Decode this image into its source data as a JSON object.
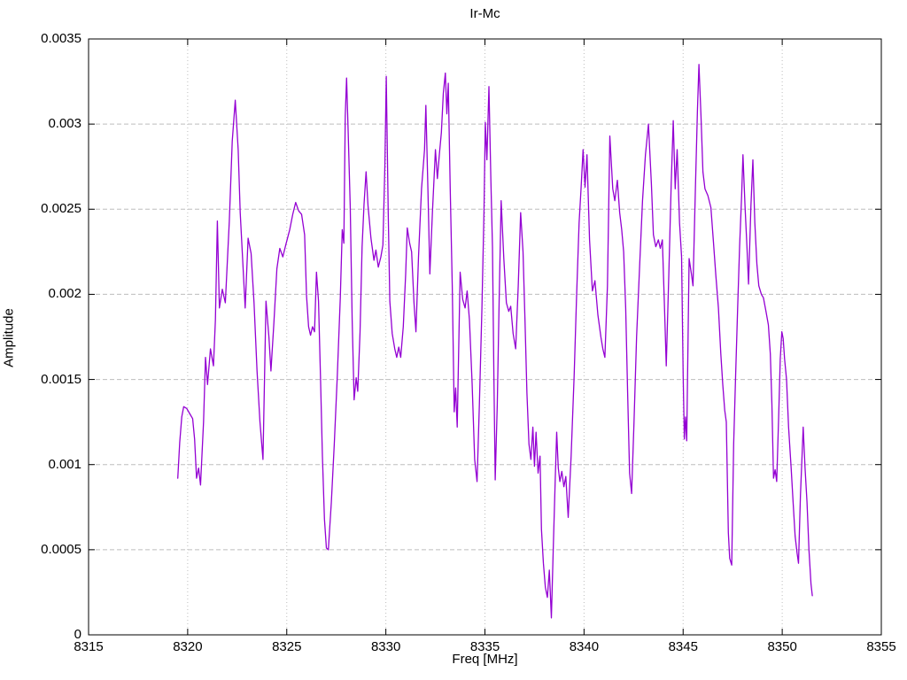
{
  "title": "Ir-Mc",
  "axes": {
    "xlabel": "Freq [MHz]",
    "ylabel": "Amplitude"
  },
  "colors": {
    "line": "#9400d3",
    "grid": "#bdbdbd",
    "axis": "#000000",
    "background": "#ffffff",
    "text": "#000000"
  },
  "chart_data": {
    "type": "line",
    "title": "Ir-Mc",
    "xlabel": "Freq [MHz]",
    "ylabel": "Amplitude",
    "xlim": [
      8315,
      8355
    ],
    "ylim": [
      0,
      0.0035
    ],
    "xticks": [
      8315,
      8320,
      8325,
      8330,
      8335,
      8340,
      8345,
      8350,
      8355
    ],
    "xtick_labels": [
      "8315",
      "8320",
      "8325",
      "8330",
      "8335",
      "8340",
      "8345",
      "8350",
      "8355"
    ],
    "yticks": [
      0,
      0.0005,
      0.001,
      0.0015,
      0.002,
      0.0025,
      0.003,
      0.0035
    ],
    "ytick_labels": [
      "0",
      "0.0005",
      "0.001",
      "0.0015",
      "0.002",
      "0.0025",
      "0.003",
      "0.0035"
    ],
    "grid": true,
    "legend_position": "none",
    "line_color": "#9400d3",
    "series": [
      {
        "name": "Ir-Mc",
        "x": [
          8319.5,
          8319.6,
          8319.7,
          8319.8,
          8319.95,
          8320.1,
          8320.25,
          8320.35,
          8320.45,
          8320.55,
          8320.65,
          8320.8,
          8320.9,
          8321.0,
          8321.15,
          8321.3,
          8321.4,
          8321.5,
          8321.6,
          8321.75,
          8321.9,
          8322.1,
          8322.25,
          8322.4,
          8322.55,
          8322.65,
          8322.8,
          8322.9,
          8323.05,
          8323.2,
          8323.35,
          8323.5,
          8323.65,
          8323.8,
          8323.95,
          8324.1,
          8324.2,
          8324.35,
          8324.5,
          8324.65,
          8324.8,
          8324.95,
          8325.15,
          8325.3,
          8325.45,
          8325.6,
          8325.75,
          8325.9,
          8326.0,
          8326.1,
          8326.2,
          8326.3,
          8326.4,
          8326.5,
          8326.6,
          8326.7,
          8326.8,
          8326.9,
          8327.0,
          8327.1,
          8327.25,
          8327.4,
          8327.55,
          8327.7,
          8327.8,
          8327.88,
          8327.95,
          8328.02,
          8328.1,
          8328.2,
          8328.3,
          8328.4,
          8328.5,
          8328.58,
          8328.7,
          8328.8,
          8328.9,
          8329.0,
          8329.1,
          8329.25,
          8329.4,
          8329.5,
          8329.62,
          8329.75,
          8329.85,
          8329.95,
          8330.02,
          8330.12,
          8330.2,
          8330.32,
          8330.45,
          8330.55,
          8330.65,
          8330.75,
          8330.88,
          8331.0,
          8331.08,
          8331.2,
          8331.3,
          8331.42,
          8331.52,
          8331.65,
          8331.8,
          8331.95,
          8332.02,
          8332.12,
          8332.22,
          8332.35,
          8332.5,
          8332.6,
          8332.7,
          8332.8,
          8332.9,
          8333.0,
          8333.08,
          8333.15,
          8333.25,
          8333.35,
          8333.45,
          8333.52,
          8333.6,
          8333.75,
          8333.88,
          8334.0,
          8334.1,
          8334.22,
          8334.35,
          8334.48,
          8334.6,
          8334.72,
          8334.85,
          8334.95,
          8335.02,
          8335.1,
          8335.2,
          8335.3,
          8335.38,
          8335.45,
          8335.52,
          8335.62,
          8335.72,
          8335.82,
          8335.95,
          8336.08,
          8336.2,
          8336.3,
          8336.42,
          8336.55,
          8336.68,
          8336.8,
          8336.92,
          8337.02,
          8337.12,
          8337.22,
          8337.32,
          8337.42,
          8337.5,
          8337.58,
          8337.68,
          8337.78,
          8337.85,
          8337.95,
          8338.05,
          8338.15,
          8338.25,
          8338.35,
          8338.45,
          8338.55,
          8338.62,
          8338.7,
          8338.78,
          8338.88,
          8338.98,
          8339.08,
          8339.2,
          8339.35,
          8339.5,
          8339.62,
          8339.75,
          8339.85,
          8339.95,
          8340.05,
          8340.15,
          8340.28,
          8340.42,
          8340.55,
          8340.7,
          8340.85,
          8340.95,
          8341.05,
          8341.18,
          8341.3,
          8341.45,
          8341.55,
          8341.68,
          8341.8,
          8341.9,
          8342.0,
          8342.1,
          8342.2,
          8342.3,
          8342.4,
          8342.52,
          8342.65,
          8342.8,
          8342.95,
          8343.1,
          8343.25,
          8343.4,
          8343.5,
          8343.62,
          8343.75,
          8343.85,
          8343.95,
          8344.05,
          8344.15,
          8344.28,
          8344.4,
          8344.5,
          8344.6,
          8344.7,
          8344.82,
          8344.92,
          8345.0,
          8345.06,
          8345.12,
          8345.18,
          8345.3,
          8345.42,
          8345.5,
          8345.62,
          8345.72,
          8345.8,
          8345.9,
          8346.0,
          8346.1,
          8346.25,
          8346.4,
          8346.52,
          8346.65,
          8346.78,
          8346.9,
          8347.0,
          8347.1,
          8347.18,
          8347.28,
          8347.35,
          8347.45,
          8347.55,
          8347.65,
          8347.75,
          8347.85,
          8347.95,
          8348.02,
          8348.12,
          8348.22,
          8348.3,
          8348.42,
          8348.52,
          8348.62,
          8348.72,
          8348.82,
          8348.95,
          8349.05,
          8349.18,
          8349.3,
          8349.4,
          8349.48,
          8349.56,
          8349.64,
          8349.72,
          8349.82,
          8349.9,
          8349.98,
          8350.05,
          8350.12,
          8350.22,
          8350.32,
          8350.45,
          8350.55,
          8350.65,
          8350.75,
          8350.82,
          8350.92,
          8351.0,
          8351.06,
          8351.15,
          8351.25,
          8351.35,
          8351.45,
          8351.52
        ],
        "y": [
          0.00092,
          0.00113,
          0.00128,
          0.00134,
          0.00133,
          0.0013,
          0.00127,
          0.00115,
          0.00092,
          0.00098,
          0.00088,
          0.00125,
          0.00163,
          0.00147,
          0.00168,
          0.00158,
          0.00185,
          0.00243,
          0.00192,
          0.00203,
          0.00195,
          0.00243,
          0.0029,
          0.00314,
          0.00285,
          0.00248,
          0.00215,
          0.00192,
          0.00233,
          0.00224,
          0.00195,
          0.00155,
          0.00125,
          0.00103,
          0.00196,
          0.00175,
          0.00155,
          0.00183,
          0.00215,
          0.00227,
          0.00222,
          0.00229,
          0.00238,
          0.00247,
          0.00254,
          0.00249,
          0.00247,
          0.00235,
          0.00199,
          0.00181,
          0.00176,
          0.00181,
          0.00178,
          0.00213,
          0.00196,
          0.00152,
          0.00105,
          0.00068,
          0.00051,
          0.0005,
          0.00078,
          0.00112,
          0.00152,
          0.00198,
          0.00238,
          0.0023,
          0.00305,
          0.00327,
          0.00295,
          0.00252,
          0.00185,
          0.00138,
          0.00151,
          0.00143,
          0.00178,
          0.00228,
          0.00253,
          0.00272,
          0.00252,
          0.00233,
          0.0022,
          0.00226,
          0.00216,
          0.00222,
          0.00229,
          0.00275,
          0.00328,
          0.00248,
          0.00196,
          0.00177,
          0.00168,
          0.00163,
          0.00169,
          0.00163,
          0.00181,
          0.00212,
          0.00239,
          0.0023,
          0.00225,
          0.00195,
          0.00178,
          0.00222,
          0.00262,
          0.00285,
          0.00311,
          0.00262,
          0.00212,
          0.00248,
          0.00285,
          0.00268,
          0.00282,
          0.00295,
          0.00318,
          0.0033,
          0.00306,
          0.00324,
          0.00262,
          0.00205,
          0.00131,
          0.00145,
          0.00122,
          0.00213,
          0.00197,
          0.00192,
          0.00202,
          0.00185,
          0.00148,
          0.00103,
          0.0009,
          0.00135,
          0.00192,
          0.00248,
          0.00301,
          0.00279,
          0.00322,
          0.00267,
          0.00228,
          0.00152,
          0.00091,
          0.00135,
          0.00198,
          0.00255,
          0.00221,
          0.00195,
          0.0019,
          0.00193,
          0.00177,
          0.00168,
          0.00205,
          0.00248,
          0.00225,
          0.00185,
          0.00142,
          0.00112,
          0.00103,
          0.00122,
          0.00099,
          0.00119,
          0.00095,
          0.00105,
          0.00062,
          0.00042,
          0.00028,
          0.00022,
          0.00038,
          0.0001,
          0.00052,
          0.00092,
          0.00119,
          0.00098,
          0.0009,
          0.00096,
          0.00087,
          0.00093,
          0.00069,
          0.00105,
          0.00152,
          0.00198,
          0.00242,
          0.00262,
          0.00285,
          0.00263,
          0.00282,
          0.00232,
          0.00202,
          0.00208,
          0.00188,
          0.00175,
          0.00168,
          0.00163,
          0.00205,
          0.00293,
          0.00262,
          0.00255,
          0.00267,
          0.00248,
          0.00238,
          0.00225,
          0.00192,
          0.00142,
          0.00095,
          0.00083,
          0.00125,
          0.00175,
          0.00215,
          0.00255,
          0.00282,
          0.003,
          0.00265,
          0.00235,
          0.00228,
          0.00232,
          0.00227,
          0.00232,
          0.00196,
          0.00158,
          0.00212,
          0.00265,
          0.00302,
          0.00262,
          0.00285,
          0.00242,
          0.00222,
          0.00152,
          0.00115,
          0.00128,
          0.00114,
          0.00221,
          0.00212,
          0.00205,
          0.00262,
          0.00308,
          0.00335,
          0.00305,
          0.00272,
          0.00262,
          0.00258,
          0.00251,
          0.00232,
          0.00211,
          0.00192,
          0.00165,
          0.00147,
          0.00132,
          0.00125,
          0.0006,
          0.00045,
          0.00041,
          0.00112,
          0.00152,
          0.00192,
          0.00228,
          0.00258,
          0.00282,
          0.00252,
          0.00228,
          0.00206,
          0.00252,
          0.00279,
          0.00242,
          0.00218,
          0.00205,
          0.002,
          0.00198,
          0.0019,
          0.00182,
          0.00165,
          0.00135,
          0.00092,
          0.00097,
          0.0009,
          0.00128,
          0.00162,
          0.00178,
          0.00174,
          0.00162,
          0.0015,
          0.00122,
          0.00098,
          0.00078,
          0.00058,
          0.00048,
          0.00042,
          0.00082,
          0.00105,
          0.00122,
          0.00098,
          0.00078,
          0.0005,
          0.0003,
          0.00023
        ]
      }
    ]
  }
}
